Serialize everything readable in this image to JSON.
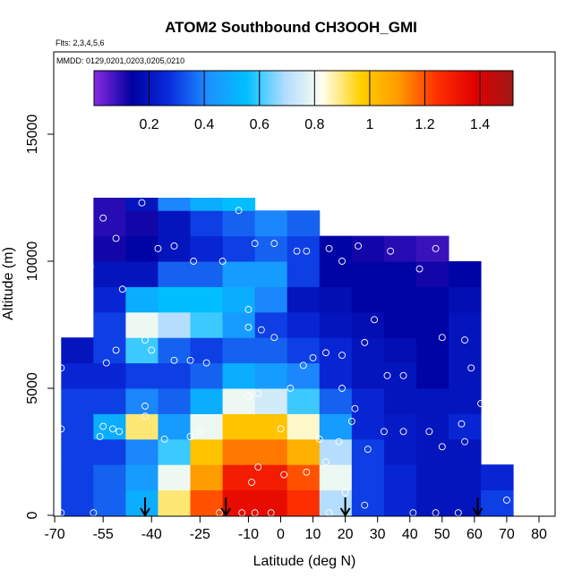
{
  "chart_data": {
    "type": "heatmap",
    "title": "ATOM2 Southbound CH3OOH_GMI",
    "flights_note": "Flts: 2,3,4,5,6",
    "dates_note": "MMDD: 0129,0201,0203,0205,0210",
    "x_label": "Latitude (deg N)",
    "y_label": "Altitude (m)",
    "xlim": [
      -70.3,
      85
    ],
    "ylim": [
      0,
      18240
    ],
    "xticks": [
      -70,
      -55,
      -40,
      -25,
      -10,
      0,
      10,
      20,
      30,
      40,
      50,
      60,
      70,
      80
    ],
    "yticks": [
      0,
      5000,
      10000,
      15000
    ],
    "clim": [
      0,
      1.52
    ],
    "cticks": [
      0.2,
      0.4,
      0.6,
      0.8,
      1.0,
      1.2,
      1.4
    ],
    "colormap": [
      "#8a2be2",
      "#0000a0",
      "#0a2ee0",
      "#1e90ff",
      "#00bfff",
      "#b0dcff",
      "#ffffee",
      "#ffd000",
      "#ff9a00",
      "#ff3000",
      "#e00000",
      "#a01818"
    ],
    "lat_edges": [
      -68,
      -58,
      -48,
      -38,
      -28,
      -18,
      -8,
      2,
      12,
      22,
      32,
      42,
      52,
      62,
      72
    ],
    "alt_edges": [
      0,
      1000,
      2000,
      3000,
      4000,
      5000,
      6000,
      7000,
      8000,
      9000,
      10000,
      11000,
      12000,
      12500
    ],
    "z": [
      [
        0.3,
        0.35,
        0.5,
        0.9,
        1.2,
        1.35,
        1.35,
        1.25,
        0.7,
        0.3,
        0.25,
        0.2,
        0.2,
        0.3
      ],
      [
        0.3,
        0.35,
        0.45,
        0.8,
        1.1,
        1.3,
        1.3,
        1.2,
        0.8,
        0.3,
        0.25,
        0.2,
        0.2,
        0.25
      ],
      [
        0.3,
        0.3,
        0.4,
        0.6,
        1.0,
        1.15,
        1.15,
        1.05,
        0.7,
        0.3,
        0.22,
        0.2,
        0.2,
        null
      ],
      [
        0.3,
        0.5,
        0.9,
        0.45,
        0.8,
        1.0,
        1.0,
        0.85,
        0.45,
        0.25,
        0.22,
        0.2,
        0.25,
        null
      ],
      [
        0.3,
        0.3,
        0.4,
        0.35,
        0.5,
        0.8,
        0.75,
        0.6,
        0.35,
        0.25,
        0.2,
        0.2,
        0.2,
        null
      ],
      [
        0.25,
        0.25,
        0.3,
        0.3,
        0.35,
        0.5,
        0.45,
        0.4,
        0.25,
        0.2,
        0.2,
        0.15,
        0.2,
        null
      ],
      [
        0.2,
        0.3,
        0.6,
        0.35,
        0.3,
        0.35,
        0.35,
        0.3,
        0.25,
        0.2,
        0.18,
        0.15,
        0.2,
        null
      ],
      [
        null,
        0.3,
        0.8,
        0.7,
        0.6,
        0.45,
        0.3,
        0.25,
        0.2,
        0.18,
        0.15,
        0.15,
        0.2,
        null
      ],
      [
        null,
        0.25,
        0.5,
        0.55,
        0.55,
        0.5,
        0.4,
        0.2,
        0.18,
        0.15,
        0.15,
        0.15,
        0.18,
        null
      ],
      [
        null,
        0.2,
        0.2,
        0.35,
        0.35,
        0.45,
        0.45,
        0.3,
        0.15,
        0.15,
        0.15,
        0.12,
        0.15,
        null
      ],
      [
        null,
        0.12,
        0.15,
        0.2,
        0.25,
        0.3,
        0.35,
        0.3,
        0.15,
        0.12,
        0.1,
        0.08,
        null,
        null
      ],
      [
        null,
        0.1,
        0.12,
        0.2,
        0.3,
        0.35,
        0.4,
        0.35,
        null,
        null,
        null,
        null,
        null,
        null
      ],
      [
        null,
        0.1,
        0.2,
        0.4,
        0.5,
        0.55,
        null,
        null,
        null,
        null,
        null,
        null,
        null,
        null
      ]
    ],
    "samples": {
      "x": [
        -43,
        -55,
        -13,
        -59,
        -51,
        -38,
        -33,
        -27,
        -18,
        -8,
        -2,
        5,
        8,
        15,
        24,
        19,
        34,
        43,
        48,
        -49,
        -10,
        -10,
        -6,
        -2,
        -42,
        -51,
        -54,
        -40,
        -68,
        -33,
        -28,
        -23,
        7,
        10,
        14,
        19,
        26,
        29,
        50,
        57,
        59,
        -10,
        -7,
        3,
        19,
        23,
        22,
        33,
        38,
        -55,
        -56,
        -52,
        -50,
        -42,
        -42,
        -36,
        -68,
        -28,
        -25,
        0,
        12,
        18,
        -7,
        -9,
        1,
        8,
        14,
        27,
        32,
        38,
        46,
        50,
        57,
        56,
        62,
        20,
        26,
        -68,
        -58,
        -8,
        -12,
        -3,
        15,
        41,
        48,
        55,
        70,
        -19
      ],
      "y": [
        12300,
        11700,
        12000,
        9800,
        10900,
        10500,
        10600,
        10000,
        10000,
        10700,
        10700,
        10400,
        10400,
        10500,
        10600,
        10000,
        10400,
        9700,
        10500,
        8900,
        8100,
        7400,
        7300,
        7000,
        6900,
        6500,
        6000,
        6500,
        5800,
        6100,
        6100,
        6000,
        5900,
        6200,
        6400,
        6300,
        6800,
        7700,
        7000,
        6900,
        5800,
        4700,
        4800,
        5000,
        5000,
        4200,
        3700,
        5500,
        5500,
        3500,
        3100,
        3400,
        3300,
        4300,
        3900,
        3000,
        3400,
        3100,
        3300,
        3400,
        3000,
        2900,
        1900,
        1300,
        1600,
        1700,
        2100,
        2600,
        3300,
        3300,
        3300,
        2700,
        2900,
        3600,
        4400,
        900,
        400,
        100,
        100,
        100,
        100,
        100,
        100,
        100,
        100,
        100,
        600,
        100
      ]
    },
    "flight_markers": [
      -42,
      -17,
      20,
      61
    ]
  }
}
